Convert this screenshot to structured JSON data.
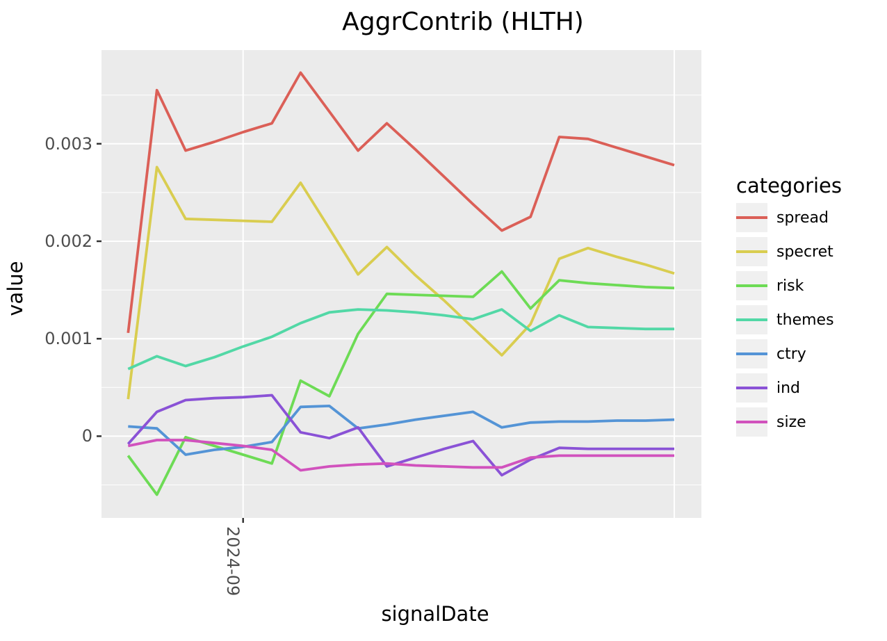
{
  "title": "AggrContrib (HLTH)",
  "axes": {
    "x_label": "signalDate",
    "y_label": "value",
    "x_tick_labels": [
      "2024-09"
    ],
    "y_tick_labels": [
      "0.003",
      "0.002",
      "0.001",
      "0"
    ]
  },
  "legend": {
    "title": "categories",
    "entries": [
      {
        "label": "spread",
        "color": "#db5f57"
      },
      {
        "label": "specret",
        "color": "#d9cd50"
      },
      {
        "label": "risk",
        "color": "#6ddb55"
      },
      {
        "label": "themes",
        "color": "#52d8a6"
      },
      {
        "label": "ctry",
        "color": "#5494d6"
      },
      {
        "label": "ind",
        "color": "#8a52d6"
      },
      {
        "label": "size",
        "color": "#d152bd"
      }
    ]
  },
  "colors": {
    "panel_background": "#ebebeb",
    "gridline": "#ffffff",
    "tick_mark": "#333333",
    "tick_text": "#4d4d4d",
    "legend_key_fill": "#f0f0f0"
  },
  "chart_data": {
    "type": "line",
    "title": "AggrContrib (HLTH)",
    "xlabel": "signalDate",
    "ylabel": "value",
    "legend_title": "categories",
    "legend_position": "right",
    "grid": true,
    "x_point_count": 20,
    "x_tick": {
      "label": "2024-09",
      "point_index": 4
    },
    "unlabeled_vertical_gridline_point_index": 19,
    "y_major_ticks": [
      0.003,
      0.002,
      0.001,
      0
    ],
    "y_minor_gridlines": [
      0.0035,
      0.0025,
      0.0015,
      0.0005,
      -0.0005
    ],
    "ylim": [
      -0.00084,
      0.00396
    ],
    "series": [
      {
        "name": "spread",
        "color": "#db5f57",
        "values": [
          0.00106,
          0.00355,
          0.00293,
          0.00302,
          0.00312,
          0.00321,
          0.00373,
          0.00333,
          0.00293,
          0.00321,
          0.00294,
          0.00266,
          0.00238,
          0.00211,
          0.00225,
          0.00307,
          0.00305,
          0.00296,
          0.00287,
          0.00278
        ]
      },
      {
        "name": "specret",
        "color": "#d9cd50",
        "values": [
          0.00038,
          0.00276,
          0.00223,
          0.00222,
          0.00221,
          0.0022,
          0.0026,
          0.00213,
          0.00166,
          0.00194,
          0.00165,
          0.00139,
          0.00111,
          0.00083,
          0.00115,
          0.00182,
          0.00193,
          0.00184,
          0.00176,
          0.00167
        ]
      },
      {
        "name": "risk",
        "color": "#6ddb55",
        "values": [
          -0.0002,
          -0.0006,
          -1e-05,
          -0.0001,
          -0.00019,
          -0.00028,
          0.00057,
          0.00041,
          0.00105,
          0.00146,
          0.00145,
          0.00144,
          0.00143,
          0.00169,
          0.00131,
          0.0016,
          0.00157,
          0.00155,
          0.00153,
          0.00152
        ]
      },
      {
        "name": "themes",
        "color": "#52d8a6",
        "values": [
          0.00069,
          0.00082,
          0.00072,
          0.00081,
          0.00092,
          0.00102,
          0.00116,
          0.00127,
          0.0013,
          0.00129,
          0.00127,
          0.00124,
          0.0012,
          0.0013,
          0.00108,
          0.00124,
          0.00112,
          0.00111,
          0.0011,
          0.0011
        ]
      },
      {
        "name": "ctry",
        "color": "#5494d6",
        "values": [
          0.0001,
          8e-05,
          -0.00019,
          -0.00014,
          -0.00011,
          -6e-05,
          0.0003,
          0.00031,
          8e-05,
          0.00012,
          0.00017,
          0.00021,
          0.00025,
          9e-05,
          0.00014,
          0.00015,
          0.00015,
          0.00016,
          0.00016,
          0.00017
        ]
      },
      {
        "name": "ind",
        "color": "#8a52d6",
        "values": [
          -8e-05,
          0.00025,
          0.00037,
          0.00039,
          0.0004,
          0.00042,
          4e-05,
          -2e-05,
          9e-05,
          -0.00031,
          -0.00022,
          -0.00013,
          -5e-05,
          -0.0004,
          -0.00024,
          -0.00012,
          -0.00013,
          -0.00013,
          -0.00013,
          -0.00013
        ]
      },
      {
        "name": "size",
        "color": "#d152bd",
        "values": [
          -0.0001,
          -4e-05,
          -4e-05,
          -7e-05,
          -0.0001,
          -0.00014,
          -0.00035,
          -0.00031,
          -0.00029,
          -0.00028,
          -0.0003,
          -0.00031,
          -0.00032,
          -0.00032,
          -0.00022,
          -0.0002,
          -0.0002,
          -0.0002,
          -0.0002,
          -0.0002
        ]
      }
    ]
  }
}
